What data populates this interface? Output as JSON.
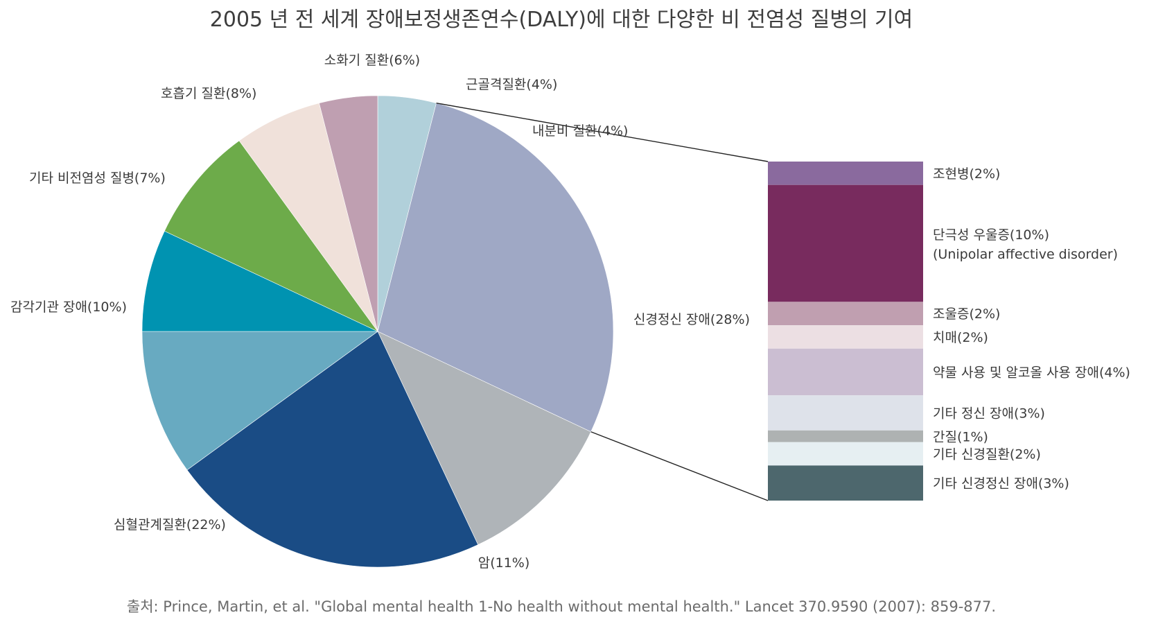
{
  "chart_data": [
    {
      "type": "pie",
      "title": "2005 년 전 세계 장애보정생존연수(DALY)에 대한 다양한 비 전염성 질병의 기여",
      "start": "12 o'clock, clockwise",
      "slices": [
        {
          "label": "내분비 질환(4%)",
          "value": 4,
          "color": "#b1d0da"
        },
        {
          "label": "신경정신 장애(28%)",
          "value": 28,
          "color": "#9fa8c5"
        },
        {
          "label": "암(11%)",
          "value": 11,
          "color": "#afb4b8"
        },
        {
          "label": "심혈관계질환(22%)",
          "value": 22,
          "color": "#1a4c85"
        },
        {
          "label": "감각기관 장애(10%)",
          "value": 10,
          "color": "#68aac1"
        },
        {
          "label": "기타 비전염성 질병(7%)",
          "value": 7,
          "color": "#0093b1"
        },
        {
          "label": "호흡기 질환(8%)",
          "value": 8,
          "color": "#6dab4a"
        },
        {
          "label": "소화기 질환(6%)",
          "value": 6,
          "color": "#f0e1da"
        },
        {
          "label": "근골격질환(4%)",
          "value": 4,
          "color": "#bf9fb1"
        }
      ]
    },
    {
      "type": "bar",
      "orientation": "stacked-vertical",
      "breakdown_of": "신경정신 장애(28%)",
      "segments": [
        {
          "label": "조현병(2%)",
          "value": 2,
          "color": "#8a6a9e"
        },
        {
          "label": "단극성 우울증(10%)",
          "label2": "(Unipolar affective disorder)",
          "value": 10,
          "color": "#782b5e"
        },
        {
          "label": "조울증(2%)",
          "value": 2,
          "color": "#c09fb0"
        },
        {
          "label": "치매(2%)",
          "value": 2,
          "color": "#ecdfe3"
        },
        {
          "label": "약물 사용 및 알코올 사용 장애(4%)",
          "value": 4,
          "color": "#cbbed2"
        },
        {
          "label": "기타 정신 장애(3%)",
          "value": 3,
          "color": "#dee2ea"
        },
        {
          "label": "간질(1%)",
          "value": 1,
          "color": "#aeb2b2"
        },
        {
          "label": "기타 신경질환(2%)",
          "value": 2,
          "color": "#e6eff2"
        },
        {
          "label": "기타 신경정신 장애(3%)",
          "value": 3,
          "color": "#4d676d"
        }
      ]
    }
  ],
  "source": "출처: Prince, Martin, et al. \"Global mental health 1-No health without mental health.\" Lancet 370.9590 (2007): 859-877."
}
